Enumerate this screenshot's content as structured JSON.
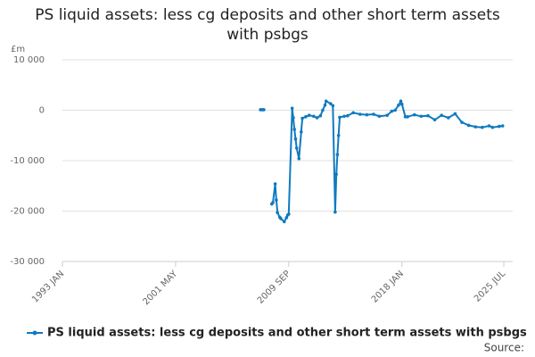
{
  "chart_data": {
    "type": "line",
    "title": "PS liquid assets: less cg deposits and other short term assets with psbgs",
    "y_unit": "£m",
    "source_label": "Source:",
    "xlim": [
      "1993 JAN",
      "2025 JUL"
    ],
    "xticks": [
      "1993 JAN",
      "2001 MAY",
      "2009 SEP",
      "2018 JAN",
      "2025 JUL"
    ],
    "ylim": [
      -30000,
      10000
    ],
    "yticks": [
      {
        "value": -30000,
        "label": "-30 000"
      },
      {
        "value": -20000,
        "label": "-20 000"
      },
      {
        "value": -10000,
        "label": "-10 000"
      },
      0,
      {
        "value": 10000,
        "label": "10 000"
      }
    ],
    "grid": true,
    "legend": "bottom",
    "x": [
      "2007 AUG",
      "2007 SEP",
      "2007 OCT",
      "2007 NOV",
      "2007 DEC",
      "2008 JUN",
      "2008 JUL",
      "2008 SEP",
      "2008 OCT",
      "2008 NOV",
      "2009 JAN",
      "2009 FEB",
      "2009 MAY",
      "2009 JUL",
      "2009 AUG",
      "2009 SEP",
      "2009 DEC",
      "2010 JAN",
      "2010 FEB",
      "2010 MAR",
      "2010 APR",
      "2010 JUN",
      "2010 AUG",
      "2010 SEP",
      "2010 DEC",
      "2011 MAR",
      "2011 JUL",
      "2011 OCT",
      "2012 JAN",
      "2012 MAR",
      "2012 MAY",
      "2012 JUN",
      "2012 OCT",
      "2012 DEC",
      "2013 FEB",
      "2013 MAR",
      "2013 APR",
      "2013 MAY",
      "2013 JUN",
      "2013 OCT",
      "2014 JAN",
      "2014 JUN",
      "2014 DEC",
      "2015 JUN",
      "2015 DEC",
      "2016 MAY",
      "2016 DEC",
      "2017 APR",
      "2017 JUL",
      "2017 OCT",
      "2017 DEC",
      "2018 JAN",
      "2018 APR",
      "2018 JUN",
      "2018 DEC",
      "2019 JUN",
      "2019 DEC",
      "2020 JUN",
      "2020 DEC",
      "2021 JUN",
      "2021 DEC",
      "2022 JUN",
      "2022 DEC",
      "2023 JUN",
      "2023 DEC",
      "2024 JUN",
      "2024 SEP",
      "2025 MAR",
      "2025 JUN"
    ],
    "series": [
      {
        "name": "PS liquid assets: less cg deposits and other short term assets with psbgs",
        "color": "#0f7ac0",
        "values": [
          100,
          100,
          100,
          100,
          null,
          -18600,
          -18300,
          -14600,
          -17800,
          -20300,
          -21200,
          -21500,
          -22100,
          -21300,
          -20800,
          -20600,
          400,
          -1500,
          -3800,
          -5700,
          -7500,
          -9600,
          -4300,
          -1600,
          -1300,
          -1000,
          -1200,
          -1500,
          -1100,
          0,
          1000,
          1800,
          1300,
          900,
          -20200,
          -12700,
          -8800,
          -5000,
          -1400,
          -1200,
          -1100,
          -500,
          -800,
          -900,
          -800,
          -1200,
          -1000,
          -200,
          0,
          1000,
          1800,
          1200,
          -1300,
          -1300,
          -900,
          -1200,
          -1100,
          -1900,
          -1000,
          -1500,
          -700,
          -2400,
          -3000,
          -3300,
          -3400,
          -3100,
          -3400,
          -3200,
          -3100
        ]
      }
    ]
  }
}
